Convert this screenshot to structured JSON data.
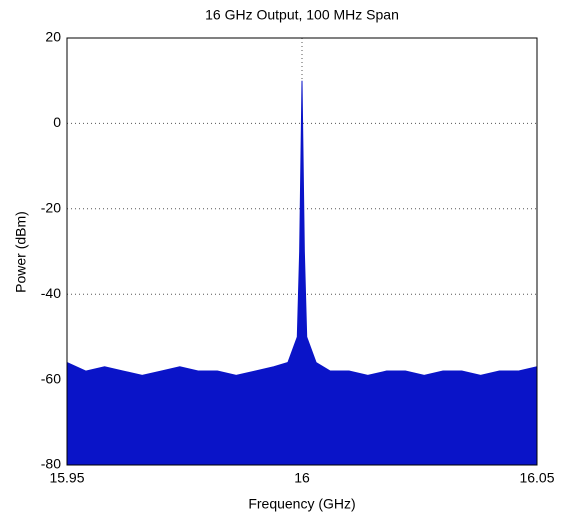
{
  "chart_data": {
    "type": "area",
    "title": "16 GHz Output, 100 MHz Span",
    "xlabel": "Frequency (GHz)",
    "ylabel": "Power (dBm)",
    "x": [
      15.95,
      15.954,
      15.958,
      15.962,
      15.966,
      15.97,
      15.974,
      15.978,
      15.982,
      15.986,
      15.99,
      15.994,
      15.997,
      15.999,
      15.9995,
      16,
      16.0005,
      16.001,
      16.003,
      16.006,
      16.01,
      16.014,
      16.018,
      16.022,
      16.026,
      16.03,
      16.034,
      16.038,
      16.042,
      16.046,
      16.05
    ],
    "series": [
      {
        "color": "#0a14c8",
        "values": [
          -56,
          -58,
          -57,
          -58,
          -59,
          -58,
          -57,
          -58,
          -58,
          -59,
          -58,
          -57,
          -56,
          -50,
          -30,
          10,
          -30,
          -50,
          -56,
          -58,
          -58,
          -59,
          -58,
          -58,
          -59,
          -58,
          -58,
          -59,
          -58,
          -58,
          -57
        ]
      }
    ],
    "xlim": [
      15.95,
      16.05
    ],
    "xticks": [
      15.95,
      16,
      16.05
    ],
    "ylim": [
      -80,
      20
    ],
    "yticks": [
      -80,
      -60,
      -40,
      -20,
      0,
      20
    ],
    "grid": true
  }
}
